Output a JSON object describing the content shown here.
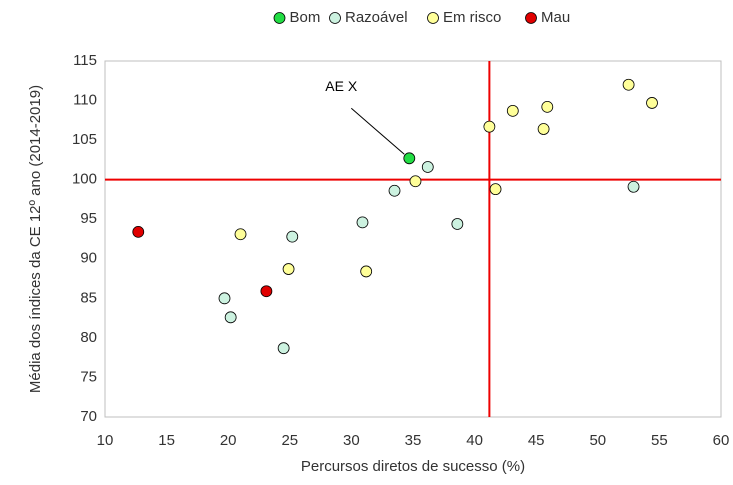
{
  "chart_data": {
    "type": "scatter",
    "x_label": "Percursos diretos de sucesso (%)",
    "y_label": "Média dos índices da CE 12º ano (2014-2019)",
    "xlim": [
      10,
      60
    ],
    "xticks": [
      10,
      15,
      20,
      25,
      30,
      35,
      40,
      45,
      50,
      55,
      60
    ],
    "ylim": [
      70,
      115
    ],
    "yticks": [
      70,
      75,
      80,
      85,
      90,
      95,
      100,
      105,
      110,
      115
    ],
    "grid": false,
    "legend": "top",
    "reference_color": "#ee0000",
    "reference_lines": {
      "x": 41.2,
      "y": 100
    },
    "annotation": {
      "text": "AE X",
      "x": 34.7,
      "y": 102.7
    },
    "series": [
      {
        "name": "Bom",
        "color": "#22dd44",
        "x": [
          34.7
        ],
        "values": [
          102.7
        ]
      },
      {
        "name": "Razoável",
        "color": "#ccf2e0",
        "x": [
          19.7,
          20.2,
          25.2,
          24.5,
          30.9,
          33.5,
          36.2,
          38.6,
          52.9
        ],
        "values": [
          85.0,
          82.6,
          92.8,
          78.7,
          94.6,
          98.6,
          101.6,
          94.4,
          99.1
        ]
      },
      {
        "name": "Em risco",
        "color": "#ffff99",
        "x": [
          21.0,
          24.9,
          31.2,
          35.2,
          41.2,
          41.7,
          43.1,
          45.9,
          45.6,
          52.5,
          54.4
        ],
        "values": [
          93.1,
          88.7,
          88.4,
          99.8,
          106.7,
          98.8,
          108.7,
          109.2,
          106.4,
          112.0,
          109.7
        ]
      },
      {
        "name": "Mau",
        "color": "#e00000",
        "x": [
          12.7,
          23.1
        ],
        "values": [
          93.4,
          85.9
        ]
      }
    ]
  }
}
